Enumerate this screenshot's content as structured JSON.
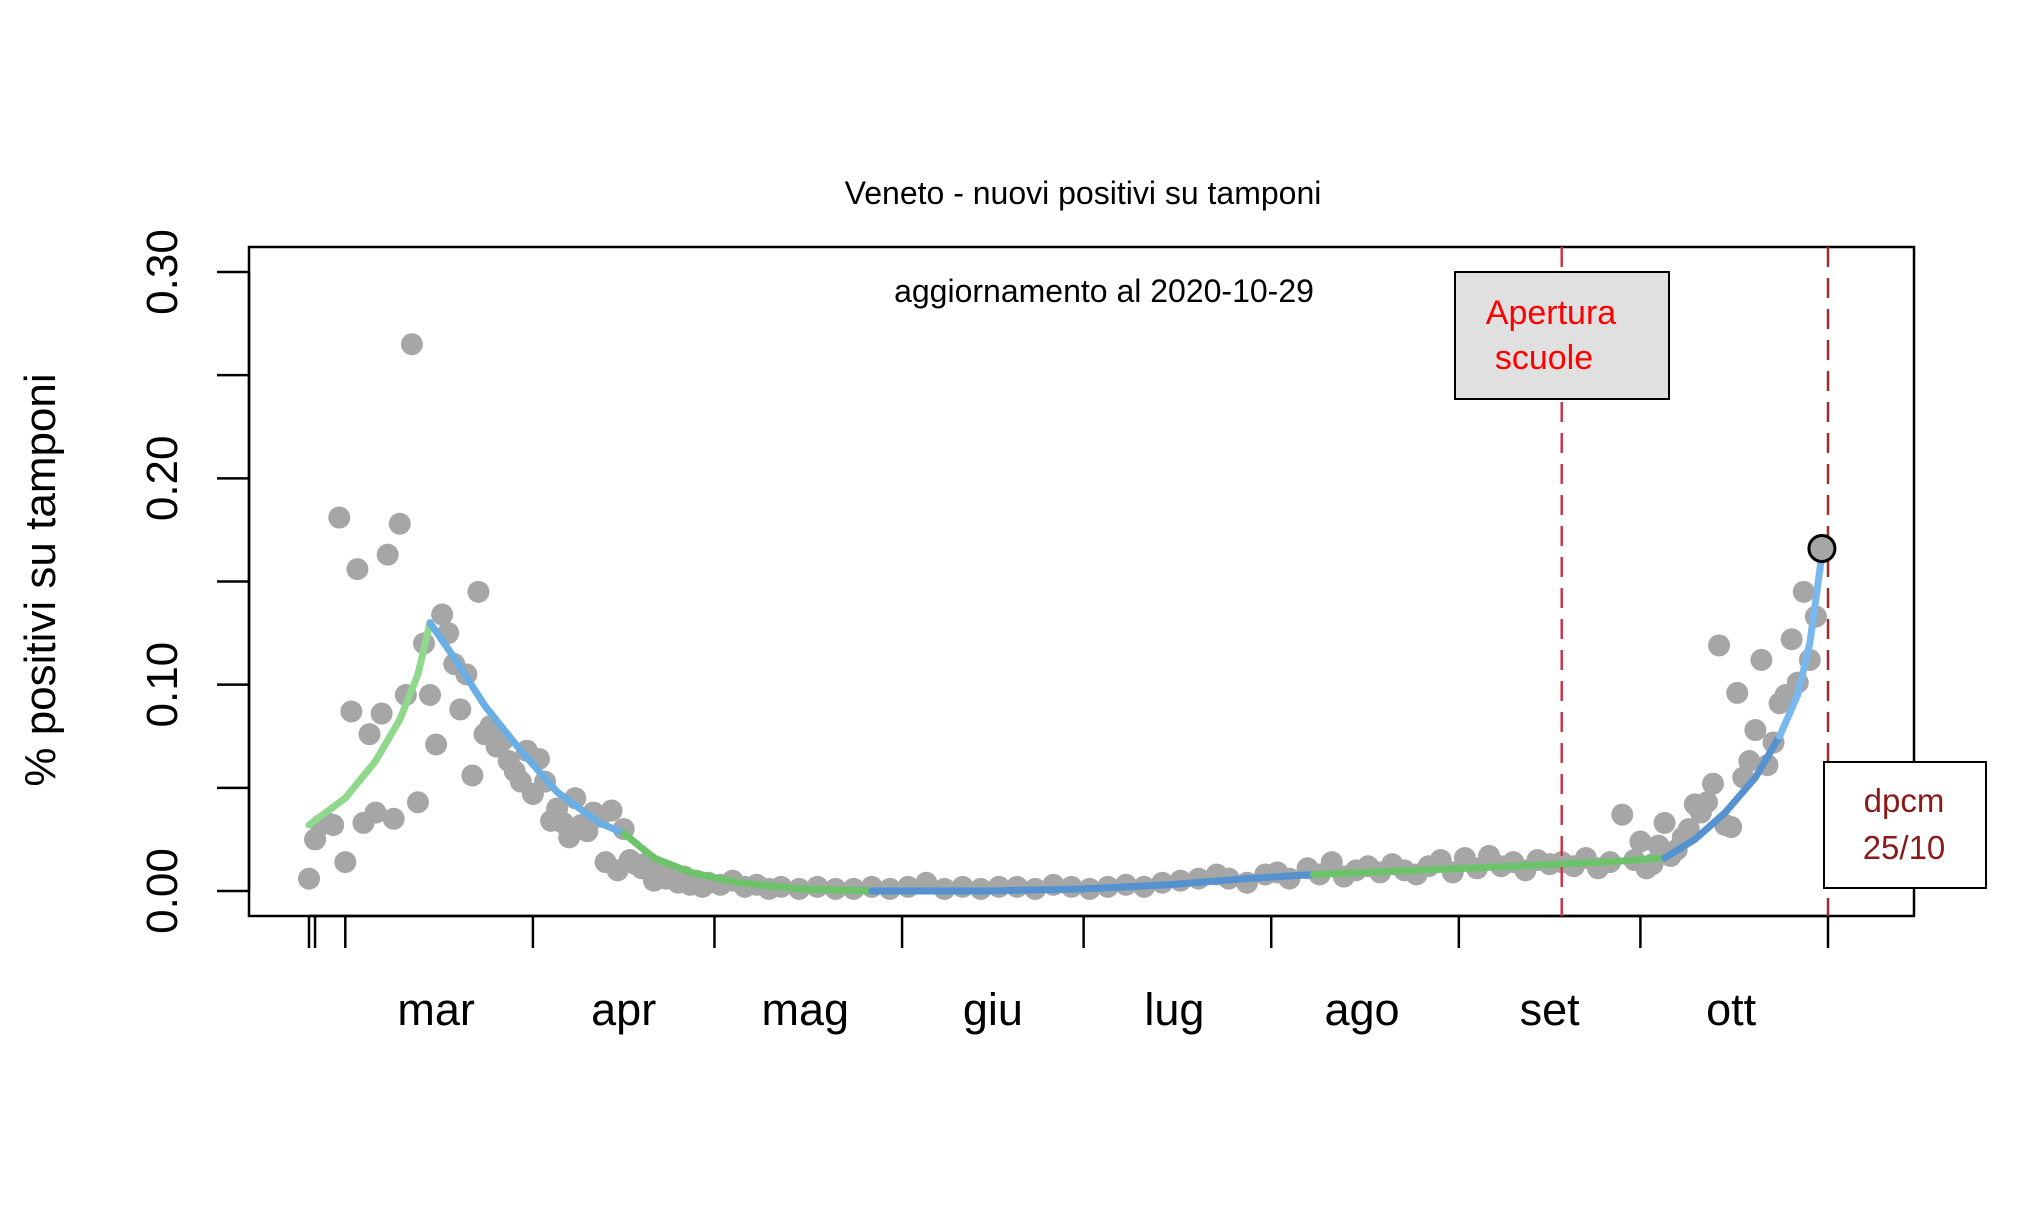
{
  "chart_data": {
    "type": "scatter",
    "title": "Veneto - nuovi positivi su tamponi",
    "subtitle": "aggiornamento al 2020-10-29",
    "ylabel": "%  positivi su tamponi",
    "xlabel": "",
    "xlim": [
      "2020-02-24",
      "2020-11-01"
    ],
    "ylim": [
      -0.012,
      0.31
    ],
    "y_ticks": [
      0.0,
      0.05,
      0.1,
      0.15,
      0.2,
      0.25,
      0.3
    ],
    "y_tick_labels": [
      "0.00",
      "",
      "0.10",
      "",
      "0.20",
      "",
      "0.30"
    ],
    "x_tick_dates": [
      "2020-02-24",
      "2020-02-25",
      "2020-03-01",
      "2020-04-01",
      "2020-05-01",
      "2020-06-01",
      "2020-07-01",
      "2020-08-01",
      "2020-09-01",
      "2020-10-01",
      "2020-11-01"
    ],
    "x_labels": [
      {
        "date": "2020-03-16",
        "text": "mar"
      },
      {
        "date": "2020-04-16",
        "text": "apr"
      },
      {
        "date": "2020-05-16",
        "text": "mag"
      },
      {
        "date": "2020-06-16",
        "text": "giu"
      },
      {
        "date": "2020-07-16",
        "text": "lug"
      },
      {
        "date": "2020-08-16",
        "text": "ago"
      },
      {
        "date": "2020-09-16",
        "text": "set"
      },
      {
        "date": "2020-10-16",
        "text": "ott"
      }
    ],
    "points": [
      [
        "2020-02-24",
        0.006
      ],
      [
        "2020-02-25",
        0.025
      ],
      [
        "2020-02-26",
        0.032
      ],
      [
        "2020-02-27",
        0.033
      ],
      [
        "2020-02-28",
        0.032
      ],
      [
        "2020-02-29",
        0.181
      ],
      [
        "2020-03-01",
        0.014
      ],
      [
        "2020-03-02",
        0.087
      ],
      [
        "2020-03-03",
        0.156
      ],
      [
        "2020-03-04",
        0.033
      ],
      [
        "2020-03-05",
        0.076
      ],
      [
        "2020-03-06",
        0.038
      ],
      [
        "2020-03-07",
        0.086
      ],
      [
        "2020-03-08",
        0.163
      ],
      [
        "2020-03-09",
        0.035
      ],
      [
        "2020-03-10",
        0.178
      ],
      [
        "2020-03-11",
        0.095
      ],
      [
        "2020-03-12",
        0.265
      ],
      [
        "2020-03-13",
        0.043
      ],
      [
        "2020-03-14",
        0.12
      ],
      [
        "2020-03-15",
        0.095
      ],
      [
        "2020-03-16",
        0.071
      ],
      [
        "2020-03-17",
        0.134
      ],
      [
        "2020-03-18",
        0.125
      ],
      [
        "2020-03-19",
        0.11
      ],
      [
        "2020-03-20",
        0.088
      ],
      [
        "2020-03-21",
        0.105
      ],
      [
        "2020-03-22",
        0.056
      ],
      [
        "2020-03-23",
        0.145
      ],
      [
        "2020-03-24",
        0.076
      ],
      [
        "2020-03-25",
        0.08
      ],
      [
        "2020-03-26",
        0.07
      ],
      [
        "2020-03-27",
        0.073
      ],
      [
        "2020-03-28",
        0.063
      ],
      [
        "2020-03-29",
        0.058
      ],
      [
        "2020-03-30",
        0.053
      ],
      [
        "2020-03-31",
        0.068
      ],
      [
        "2020-04-01",
        0.047
      ],
      [
        "2020-04-02",
        0.064
      ],
      [
        "2020-04-03",
        0.053
      ],
      [
        "2020-04-04",
        0.034
      ],
      [
        "2020-04-05",
        0.04
      ],
      [
        "2020-04-06",
        0.033
      ],
      [
        "2020-04-07",
        0.026
      ],
      [
        "2020-04-08",
        0.045
      ],
      [
        "2020-04-09",
        0.032
      ],
      [
        "2020-04-10",
        0.029
      ],
      [
        "2020-04-11",
        0.038
      ],
      [
        "2020-04-12",
        0.036
      ],
      [
        "2020-04-13",
        0.014
      ],
      [
        "2020-04-14",
        0.039
      ],
      [
        "2020-04-15",
        0.01
      ],
      [
        "2020-04-16",
        0.03
      ],
      [
        "2020-04-17",
        0.015
      ],
      [
        "2020-04-18",
        0.013
      ],
      [
        "2020-04-19",
        0.011
      ],
      [
        "2020-04-20",
        0.014
      ],
      [
        "2020-04-21",
        0.005
      ],
      [
        "2020-04-22",
        0.009
      ],
      [
        "2020-04-23",
        0.006
      ],
      [
        "2020-04-24",
        0.007
      ],
      [
        "2020-04-25",
        0.004
      ],
      [
        "2020-04-26",
        0.007
      ],
      [
        "2020-04-27",
        0.003
      ],
      [
        "2020-04-28",
        0.005
      ],
      [
        "2020-04-29",
        0.002
      ],
      [
        "2020-04-30",
        0.004
      ],
      [
        "2020-05-02",
        0.003
      ],
      [
        "2020-05-04",
        0.005
      ],
      [
        "2020-05-06",
        0.002
      ],
      [
        "2020-05-08",
        0.003
      ],
      [
        "2020-05-10",
        0.001
      ],
      [
        "2020-05-12",
        0.002
      ],
      [
        "2020-05-15",
        0.001
      ],
      [
        "2020-05-18",
        0.002
      ],
      [
        "2020-05-21",
        0.001
      ],
      [
        "2020-05-24",
        0.001
      ],
      [
        "2020-05-27",
        0.002
      ],
      [
        "2020-05-30",
        0.001
      ],
      [
        "2020-06-02",
        0.002
      ],
      [
        "2020-06-05",
        0.004
      ],
      [
        "2020-06-08",
        0.001
      ],
      [
        "2020-06-11",
        0.002
      ],
      [
        "2020-06-14",
        0.001
      ],
      [
        "2020-06-17",
        0.002
      ],
      [
        "2020-06-20",
        0.002
      ],
      [
        "2020-06-23",
        0.001
      ],
      [
        "2020-06-26",
        0.003
      ],
      [
        "2020-06-29",
        0.002
      ],
      [
        "2020-07-02",
        0.001
      ],
      [
        "2020-07-05",
        0.002
      ],
      [
        "2020-07-08",
        0.003
      ],
      [
        "2020-07-11",
        0.002
      ],
      [
        "2020-07-14",
        0.004
      ],
      [
        "2020-07-17",
        0.005
      ],
      [
        "2020-07-20",
        0.006
      ],
      [
        "2020-07-23",
        0.008
      ],
      [
        "2020-07-25",
        0.006
      ],
      [
        "2020-07-28",
        0.004
      ],
      [
        "2020-07-31",
        0.008
      ],
      [
        "2020-08-02",
        0.009
      ],
      [
        "2020-08-04",
        0.006
      ],
      [
        "2020-08-07",
        0.011
      ],
      [
        "2020-08-09",
        0.008
      ],
      [
        "2020-08-11",
        0.014
      ],
      [
        "2020-08-13",
        0.007
      ],
      [
        "2020-08-15",
        0.01
      ],
      [
        "2020-08-17",
        0.012
      ],
      [
        "2020-08-19",
        0.009
      ],
      [
        "2020-08-21",
        0.013
      ],
      [
        "2020-08-23",
        0.01
      ],
      [
        "2020-08-25",
        0.008
      ],
      [
        "2020-08-27",
        0.012
      ],
      [
        "2020-08-29",
        0.015
      ],
      [
        "2020-08-31",
        0.009
      ],
      [
        "2020-09-02",
        0.016
      ],
      [
        "2020-09-04",
        0.011
      ],
      [
        "2020-09-06",
        0.017
      ],
      [
        "2020-09-08",
        0.012
      ],
      [
        "2020-09-10",
        0.014
      ],
      [
        "2020-09-12",
        0.01
      ],
      [
        "2020-09-14",
        0.015
      ],
      [
        "2020-09-16",
        0.013
      ],
      [
        "2020-09-18",
        0.014
      ],
      [
        "2020-09-20",
        0.012
      ],
      [
        "2020-09-22",
        0.016
      ],
      [
        "2020-09-24",
        0.011
      ],
      [
        "2020-09-26",
        0.014
      ],
      [
        "2020-09-28",
        0.037
      ],
      [
        "2020-09-30",
        0.015
      ],
      [
        "2020-10-01",
        0.024
      ],
      [
        "2020-10-02",
        0.011
      ],
      [
        "2020-10-03",
        0.013
      ],
      [
        "2020-10-04",
        0.022
      ],
      [
        "2020-10-05",
        0.033
      ],
      [
        "2020-10-06",
        0.017
      ],
      [
        "2020-10-07",
        0.02
      ],
      [
        "2020-10-08",
        0.026
      ],
      [
        "2020-10-09",
        0.03
      ],
      [
        "2020-10-10",
        0.042
      ],
      [
        "2020-10-11",
        0.038
      ],
      [
        "2020-10-12",
        0.043
      ],
      [
        "2020-10-13",
        0.052
      ],
      [
        "2020-10-14",
        0.119
      ],
      [
        "2020-10-15",
        0.032
      ],
      [
        "2020-10-16",
        0.031
      ],
      [
        "2020-10-17",
        0.096
      ],
      [
        "2020-10-18",
        0.055
      ],
      [
        "2020-10-19",
        0.063
      ],
      [
        "2020-10-20",
        0.078
      ],
      [
        "2020-10-21",
        0.112
      ],
      [
        "2020-10-22",
        0.061
      ],
      [
        "2020-10-23",
        0.072
      ],
      [
        "2020-10-24",
        0.091
      ],
      [
        "2020-10-25",
        0.095
      ],
      [
        "2020-10-26",
        0.122
      ],
      [
        "2020-10-27",
        0.101
      ],
      [
        "2020-10-28",
        0.145
      ],
      [
        "2020-10-29",
        0.112
      ],
      [
        "2020-10-30",
        0.133
      ]
    ],
    "highlight_point": [
      "2020-10-31",
      0.166
    ],
    "fit_segments": [
      {
        "color": "#8fd88c",
        "points": [
          [
            "2020-02-24",
            0.032
          ],
          [
            "2020-03-01",
            0.045
          ],
          [
            "2020-03-06",
            0.063
          ],
          [
            "2020-03-10",
            0.083
          ],
          [
            "2020-03-13",
            0.105
          ],
          [
            "2020-03-15",
            0.13
          ]
        ]
      },
      {
        "color": "#6aaee6",
        "points": [
          [
            "2020-03-15",
            0.13
          ],
          [
            "2020-03-19",
            0.113
          ],
          [
            "2020-03-24",
            0.09
          ],
          [
            "2020-03-30",
            0.068
          ],
          [
            "2020-04-05",
            0.048
          ],
          [
            "2020-04-12",
            0.033
          ],
          [
            "2020-04-16",
            0.028
          ]
        ]
      },
      {
        "color": "#6dc36a",
        "points": [
          [
            "2020-04-16",
            0.028
          ],
          [
            "2020-04-21",
            0.016
          ],
          [
            "2020-04-27",
            0.009
          ],
          [
            "2020-05-05",
            0.004
          ],
          [
            "2020-05-15",
            0.001
          ],
          [
            "2020-05-27",
            0.0
          ]
        ]
      },
      {
        "color": "#5592cf",
        "points": [
          [
            "2020-05-27",
            0.0
          ],
          [
            "2020-06-15",
            0.0
          ],
          [
            "2020-07-01",
            0.001
          ],
          [
            "2020-07-15",
            0.003
          ],
          [
            "2020-07-28",
            0.006
          ],
          [
            "2020-08-08",
            0.008
          ]
        ]
      },
      {
        "color": "#6dc36a",
        "points": [
          [
            "2020-08-08",
            0.008
          ],
          [
            "2020-08-25",
            0.01
          ],
          [
            "2020-09-10",
            0.012
          ],
          [
            "2020-09-25",
            0.014
          ],
          [
            "2020-10-05",
            0.016
          ]
        ]
      },
      {
        "color": "#5592cf",
        "points": [
          [
            "2020-10-05",
            0.016
          ],
          [
            "2020-10-10",
            0.025
          ],
          [
            "2020-10-15",
            0.038
          ],
          [
            "2020-10-20",
            0.055
          ],
          [
            "2020-10-24",
            0.075
          ]
        ]
      },
      {
        "color": "#78b8ee",
        "points": [
          [
            "2020-10-24",
            0.075
          ],
          [
            "2020-10-27",
            0.095
          ],
          [
            "2020-10-29",
            0.12
          ],
          [
            "2020-10-31",
            0.163
          ]
        ]
      }
    ],
    "vlines": [
      {
        "date": "2020-09-18",
        "color": "#c8374a"
      },
      {
        "date": "2020-11-01",
        "color": "#a52a2a"
      }
    ],
    "annotations": [
      {
        "id": "scuole",
        "lines": [
          "Apertura",
          "scuole"
        ],
        "color": "#ff0000",
        "fill": "#e0e0e0"
      },
      {
        "id": "dpcm",
        "lines": [
          "dpcm",
          "25/10"
        ],
        "color": "#8b1a1a",
        "fill": "#ffffff"
      }
    ],
    "point_color": "#a6a6a6",
    "grid": false,
    "legend": "none"
  }
}
